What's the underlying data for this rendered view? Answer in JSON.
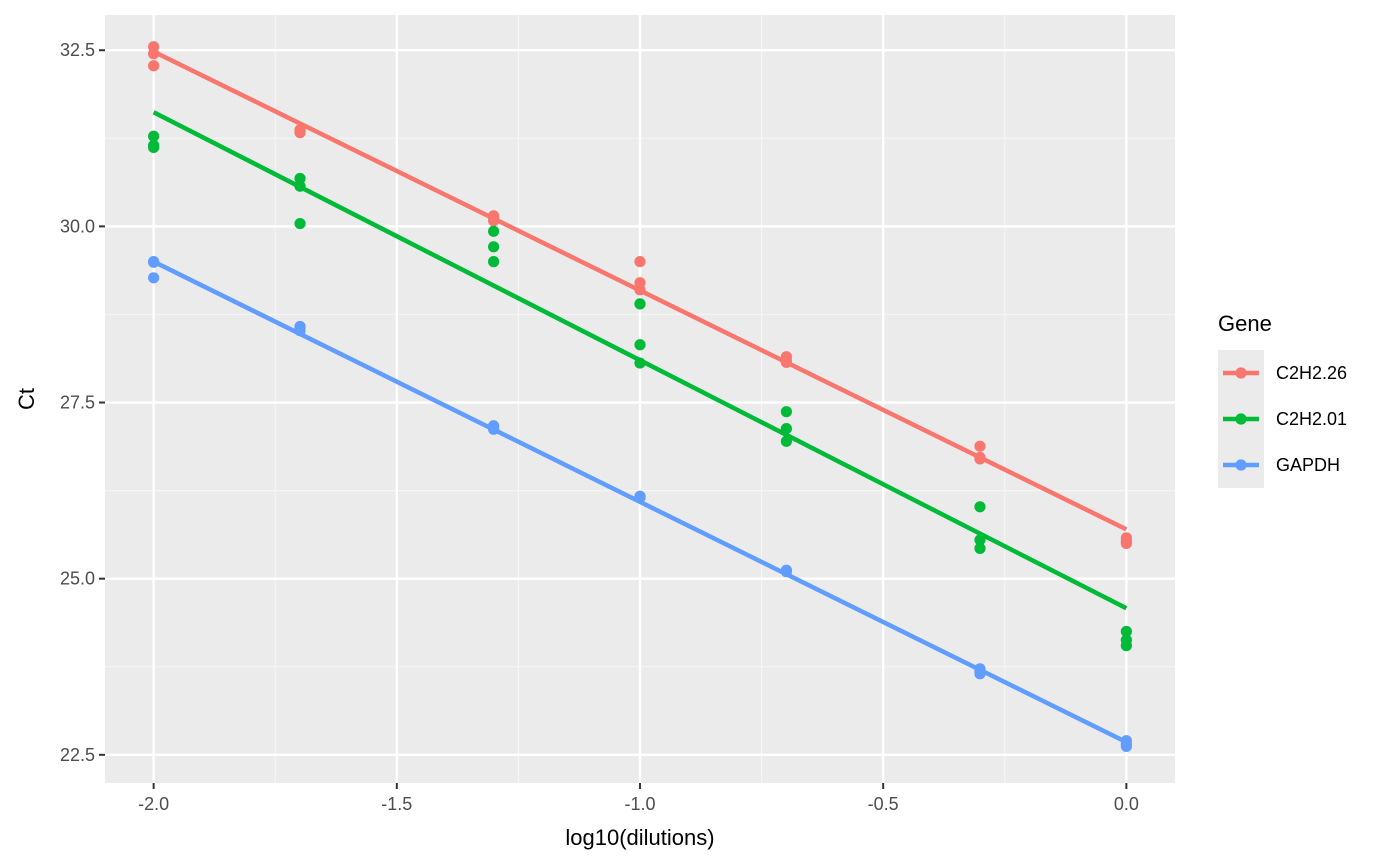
{
  "chart_data": {
    "type": "scatter",
    "xlabel": "log10(dilutions)",
    "ylabel": "Ct",
    "xlim": [
      -2.1,
      0.1
    ],
    "ylim": [
      22.1,
      33.0
    ],
    "x_ticks": [
      -2.0,
      -1.5,
      -1.0,
      -0.5,
      0.0
    ],
    "x_tick_labels": [
      "-2.0",
      "-1.5",
      "-1.0",
      "-0.5",
      "0.0"
    ],
    "y_ticks": [
      22.5,
      25.0,
      27.5,
      30.0,
      32.5
    ],
    "y_tick_labels": [
      "22.5",
      "25.0",
      "27.5",
      "30.0",
      "32.5"
    ],
    "grid": true,
    "legend_title": "Gene",
    "legend_position": "right",
    "series": [
      {
        "name": "C2H2.26",
        "color": "#F8766D",
        "points": [
          [
            -2.0,
            32.55
          ],
          [
            -2.0,
            32.45
          ],
          [
            -2.0,
            32.28
          ],
          [
            -1.699,
            31.37
          ],
          [
            -1.699,
            31.35
          ],
          [
            -1.699,
            31.33
          ],
          [
            -1.301,
            30.15
          ],
          [
            -1.301,
            30.12
          ],
          [
            -1.301,
            30.08
          ],
          [
            -1.0,
            29.5
          ],
          [
            -1.0,
            29.2
          ],
          [
            -1.0,
            29.1
          ],
          [
            -0.699,
            28.15
          ],
          [
            -0.699,
            28.1
          ],
          [
            -0.699,
            28.07
          ],
          [
            -0.301,
            26.88
          ],
          [
            -0.301,
            26.72
          ],
          [
            -0.301,
            26.7
          ],
          [
            0.0,
            25.58
          ],
          [
            0.0,
            25.53
          ],
          [
            0.0,
            25.5
          ]
        ],
        "fit": [
          [
            -2.0,
            32.48
          ],
          [
            0.0,
            25.7
          ]
        ]
      },
      {
        "name": "C2H2.01",
        "color": "#00BA38",
        "points": [
          [
            -2.0,
            31.28
          ],
          [
            -2.0,
            31.15
          ],
          [
            -2.0,
            31.12
          ],
          [
            -1.699,
            30.68
          ],
          [
            -1.699,
            30.57
          ],
          [
            -1.699,
            30.04
          ],
          [
            -1.301,
            29.93
          ],
          [
            -1.301,
            29.71
          ],
          [
            -1.301,
            29.5
          ],
          [
            -1.0,
            28.9
          ],
          [
            -1.0,
            28.32
          ],
          [
            -1.0,
            28.06
          ],
          [
            -0.699,
            27.37
          ],
          [
            -0.699,
            27.13
          ],
          [
            -0.699,
            26.95
          ],
          [
            -0.301,
            26.02
          ],
          [
            -0.301,
            25.55
          ],
          [
            -0.301,
            25.43
          ],
          [
            0.0,
            24.25
          ],
          [
            0.0,
            24.13
          ],
          [
            0.0,
            24.05
          ]
        ],
        "fit": [
          [
            -2.0,
            31.62
          ],
          [
            0.0,
            24.58
          ]
        ]
      },
      {
        "name": "GAPDH",
        "color": "#619CFF",
        "points": [
          [
            -2.0,
            29.5
          ],
          [
            -2.0,
            29.49
          ],
          [
            -2.0,
            29.27
          ],
          [
            -1.699,
            28.58
          ],
          [
            -1.699,
            28.56
          ],
          [
            -1.699,
            28.52
          ],
          [
            -1.301,
            27.17
          ],
          [
            -1.301,
            27.14
          ],
          [
            -1.301,
            27.12
          ],
          [
            -1.0,
            26.17
          ],
          [
            -1.0,
            26.16
          ],
          [
            -1.0,
            26.15
          ],
          [
            -0.699,
            25.12
          ],
          [
            -0.699,
            25.11
          ],
          [
            -0.699,
            25.1
          ],
          [
            -0.301,
            23.72
          ],
          [
            -0.301,
            23.68
          ],
          [
            -0.301,
            23.65
          ],
          [
            0.0,
            22.7
          ],
          [
            0.0,
            22.65
          ],
          [
            0.0,
            22.62
          ]
        ],
        "fit": [
          [
            -2.0,
            29.5
          ],
          [
            0.0,
            22.68
          ]
        ]
      }
    ]
  },
  "colors": {
    "panel_background": "#EBEBEB",
    "grid_major": "#FFFFFF",
    "axis_text": "#4D4D4D"
  }
}
